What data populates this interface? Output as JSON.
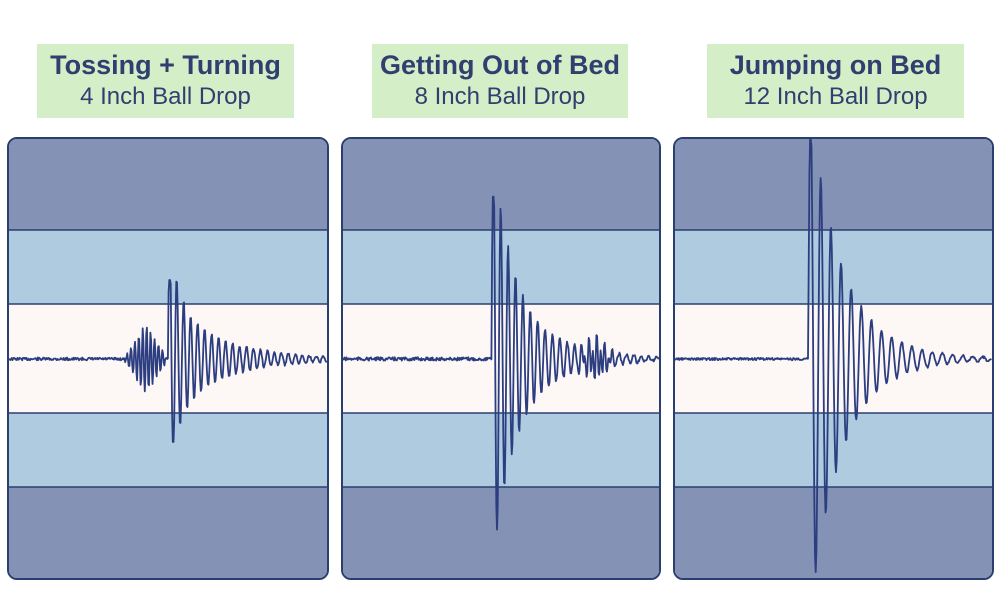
{
  "colors": {
    "label_bg": "#d4efc7",
    "text": "#2e3f70",
    "outer_band": "#8493b5",
    "mid_band": "#aecbe0",
    "center_band": "#fdf8f6",
    "waveform": "#2c3e80",
    "border": "#2c3e6f"
  },
  "chart_data": [
    {
      "type": "line",
      "title": "Tossing + Turning",
      "subtitle": "4 Inch Ball Drop",
      "peak_amplitude": 0.18,
      "y_range": [
        -1,
        1
      ]
    },
    {
      "type": "line",
      "title": "Getting Out of Bed",
      "subtitle": "8 Inch Ball Drop",
      "peak_amplitude": 0.37,
      "y_range": [
        -1,
        1
      ]
    },
    {
      "type": "line",
      "title": "Jumping on Bed",
      "subtitle": "12 Inch Ball Drop",
      "peak_amplitude": 0.5,
      "y_range": [
        -1,
        1
      ]
    }
  ]
}
